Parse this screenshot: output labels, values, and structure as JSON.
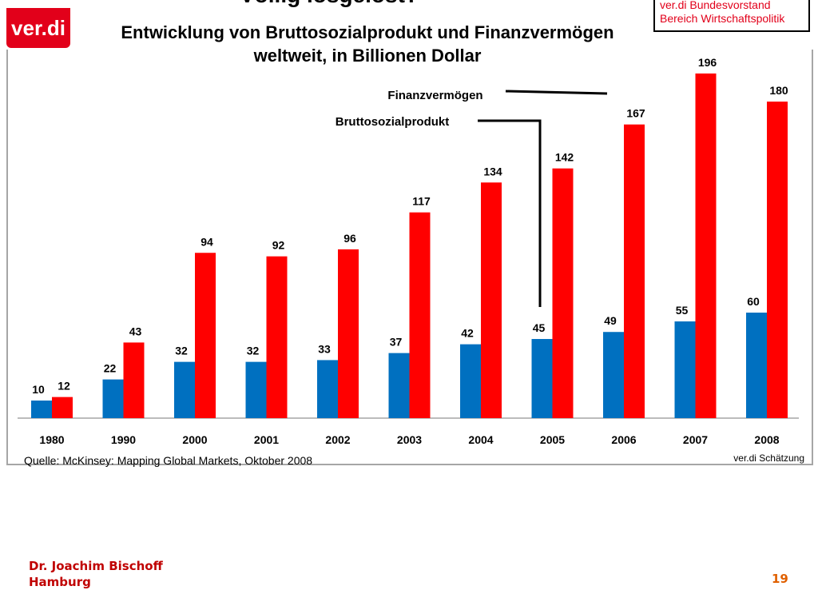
{
  "logo_text": "ver.di",
  "title_main": "Völlig losgelöst?",
  "title_sub_line1": "Entwicklung von Bruttosozialprodukt und Finanzvermögen",
  "title_sub_line2": "weltweit, in Billionen Dollar",
  "source_box_line1": "ver.di Bundesvorstand",
  "source_box_line2": "Bereich Wirtschaftspolitik",
  "source_note": "Quelle: McKinsey: Mapping Global Markets, Oktober 2008",
  "estimate_note": "ver.di Schätzung",
  "footer_author": "Dr. Joachim Bischoff",
  "footer_city": "Hamburg",
  "page_number": "19",
  "colors": {
    "bsp": "#0070c0",
    "fv": "#ff0000",
    "brand": "#e2001a"
  },
  "chart_data": {
    "type": "bar",
    "title": "Entwicklung von Bruttosozialprodukt und Finanzvermögen weltweit, in Billionen Dollar",
    "categories": [
      "1980",
      "1990",
      "2000",
      "2001",
      "2002",
      "2003",
      "2004",
      "2005",
      "2006",
      "2007",
      "2008"
    ],
    "series": [
      {
        "name": "Bruttosozialprodukt",
        "values": [
          10,
          22,
          32,
          32,
          33,
          37,
          42,
          45,
          49,
          55,
          60
        ]
      },
      {
        "name": "Finanzvermögen",
        "values": [
          12,
          43,
          94,
          92,
          96,
          117,
          134,
          142,
          167,
          196,
          180
        ]
      }
    ],
    "ylim": [
      0,
      200
    ],
    "grid": false,
    "legend": "callout labels with leader lines"
  }
}
